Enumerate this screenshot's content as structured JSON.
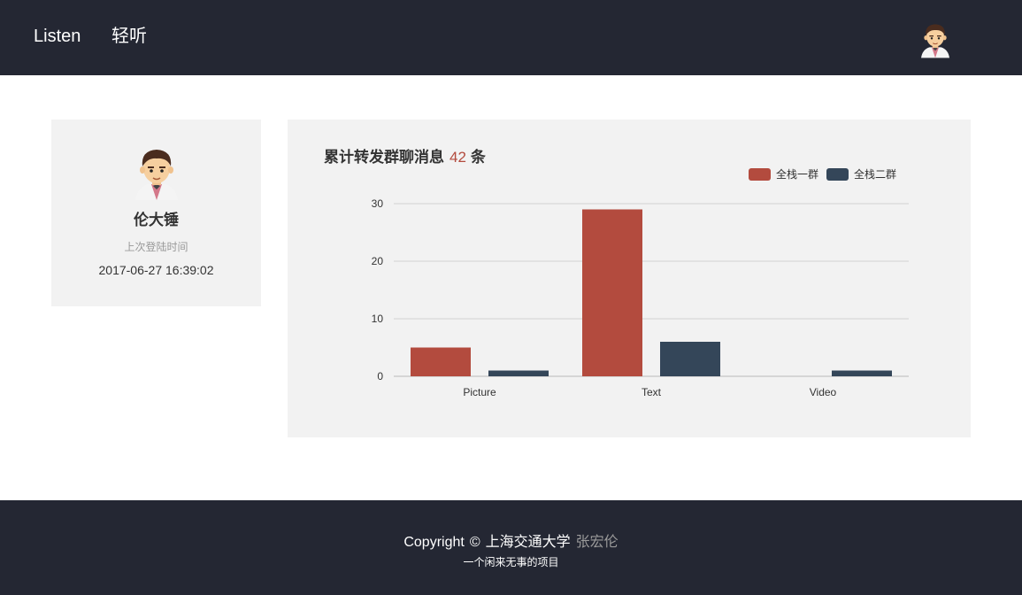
{
  "header": {
    "brand_en": "Listen",
    "brand_zh": "轻听",
    "avatar_icon": "avatar-icon"
  },
  "profile": {
    "name": "伦大锤",
    "last_login_label": "上次登陆时间",
    "last_login_time": "2017-06-27 16:39:02",
    "avatar_icon": "avatar-icon"
  },
  "chart_card": {
    "title_prefix": "累计转发群聊消息",
    "count": "42",
    "title_suffix": "条"
  },
  "chart_data": {
    "type": "bar",
    "categories": [
      "Picture",
      "Text",
      "Video"
    ],
    "series": [
      {
        "name": "全栈一群",
        "values": [
          5,
          29,
          0
        ],
        "color": "#b34b3e"
      },
      {
        "name": "全栈二群",
        "values": [
          1,
          6,
          1
        ],
        "color": "#344659"
      }
    ],
    "ylim": [
      0,
      30
    ],
    "yticks": [
      0,
      10,
      20,
      30
    ],
    "grid": true,
    "legend": "top-right",
    "xlabel": "",
    "ylabel": ""
  },
  "footer": {
    "copyright": "Copyright",
    "symbol": "©",
    "org": "上海交通大学",
    "author": "张宏伦",
    "tagline": "一个闲来无事的项目"
  }
}
